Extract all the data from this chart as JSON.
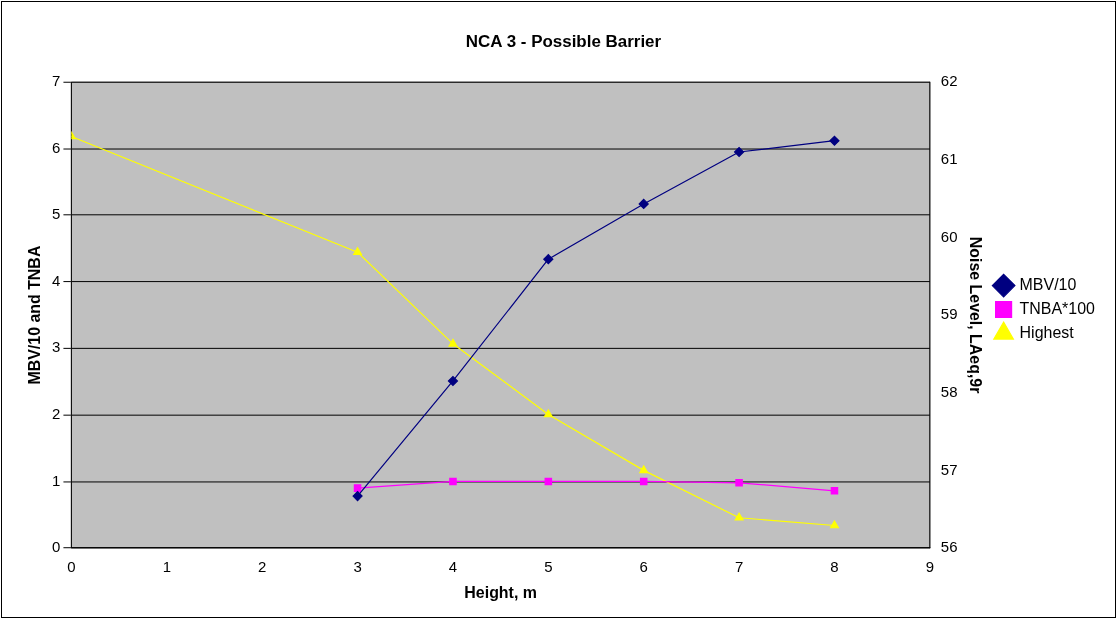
{
  "chart_data": {
    "type": "line",
    "title": "NCA 3 - Possible Barrier",
    "xlabel": "Height, m",
    "ylabel": "MBV/10 and TNBA",
    "y2label": "Noise Level, LAeq,9r",
    "xlim": [
      0,
      9
    ],
    "xticks": [
      0,
      1,
      2,
      3,
      4,
      5,
      6,
      7,
      8,
      9
    ],
    "ylim": [
      0,
      7
    ],
    "yticks": [
      0,
      1,
      2,
      3,
      4,
      5,
      6,
      7
    ],
    "y2lim": [
      56,
      62
    ],
    "y2ticks": [
      56,
      57,
      58,
      59,
      60,
      61,
      62
    ],
    "grid": "y",
    "legend": "right",
    "series": [
      {
        "name": "MBV/10",
        "color": "#000080",
        "marker": "diamond",
        "x": [
          3,
          4,
          5,
          6,
          7,
          8
        ],
        "values": [
          0.78,
          2.51,
          4.34,
          5.17,
          5.95,
          6.12
        ]
      },
      {
        "name": "TNBA*100",
        "color": "#ff00ff",
        "marker": "square",
        "x": [
          3,
          4,
          5,
          6,
          7,
          8
        ],
        "values": [
          0.9,
          1.0,
          1.0,
          1.0,
          0.98,
          0.86
        ]
      },
      {
        "name": "Highest",
        "color": "#ffff00",
        "marker": "triangle",
        "axis": "y2",
        "x": [
          0,
          3,
          4,
          5,
          6,
          7,
          8
        ],
        "values": [
          61.3,
          59.81,
          58.63,
          57.72,
          57.0,
          56.39,
          56.29
        ]
      }
    ]
  }
}
